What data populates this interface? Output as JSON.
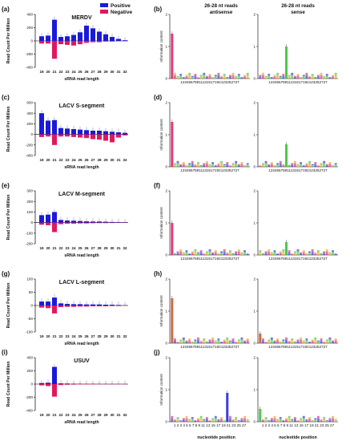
{
  "figure": {
    "panels_left": [
      "(a)",
      "(c)",
      "(e)",
      "(g)",
      "(i)"
    ],
    "panels_right": [
      "(b)",
      "(d)",
      "(f)",
      "(h)",
      "(j)"
    ],
    "header_line1": "26-28 nt reads",
    "header_antisense": "antisense",
    "header_sense": "sense",
    "logo_ylabel": "Information content",
    "logo_xlabel": "nucleotide position",
    "logo_xticks_compact": "12345678911131517192123252727",
    "logo_xticks_spaced": "1 2 3 4 5 6 7 8 9 11 13 15 17 19 21 23 25 27"
  },
  "legend": {
    "positive_label": "Positive",
    "negative_label": "Negative",
    "positive_color": "#1a1adb",
    "negative_color": "#e0185e"
  },
  "chart_data": [
    {
      "type": "bar",
      "title": "MERDV",
      "ylabel": "Read Count Per Million",
      "xlabel": "sRNA read length",
      "categories": [
        19,
        20,
        21,
        22,
        23,
        24,
        25,
        26,
        27,
        28,
        29,
        30,
        31,
        32
      ],
      "ylim": [
        -400,
        400
      ],
      "yticks": [
        -400,
        -200,
        0,
        200,
        400
      ],
      "series": [
        {
          "name": "Positive",
          "values": [
            70,
            80,
            320,
            60,
            70,
            90,
            130,
            230,
            190,
            140,
            100,
            60,
            30,
            10
          ]
        },
        {
          "name": "Negative",
          "values": [
            -40,
            -40,
            -270,
            -50,
            -60,
            -70,
            -50,
            -30,
            -20,
            -20,
            -10,
            -10,
            -5,
            -3
          ]
        }
      ]
    },
    {
      "type": "bar",
      "title": "LACV S-segment",
      "ylabel": "Read Count Per Million",
      "xlabel": "sRNA read length",
      "categories": [
        19,
        20,
        21,
        22,
        23,
        24,
        25,
        26,
        27,
        28,
        29,
        30,
        31,
        32
      ],
      "ylim": [
        -400,
        600
      ],
      "yticks": [
        -400,
        -200,
        0,
        200,
        400,
        600
      ],
      "series": [
        {
          "name": "Positive",
          "values": [
            400,
            260,
            270,
            120,
            110,
            100,
            90,
            80,
            70,
            70,
            60,
            50,
            40,
            30
          ]
        },
        {
          "name": "Negative",
          "values": [
            -50,
            -40,
            -200,
            -40,
            -40,
            -50,
            -60,
            -70,
            -90,
            -100,
            -120,
            -150,
            -60,
            -20
          ]
        }
      ]
    },
    {
      "type": "bar",
      "title": "LACV M-segment",
      "ylabel": "Read Count Per Million",
      "xlabel": "sRNA read length",
      "categories": [
        19,
        20,
        21,
        22,
        23,
        24,
        25,
        26,
        27,
        28,
        29,
        30,
        31,
        32
      ],
      "ylim": [
        -200,
        300
      ],
      "yticks": [
        -200,
        -100,
        0,
        100,
        200,
        300
      ],
      "series": [
        {
          "name": "Positive",
          "values": [
            70,
            75,
            100,
            25,
            20,
            18,
            15,
            12,
            10,
            10,
            8,
            6,
            5,
            3
          ]
        },
        {
          "name": "Negative",
          "values": [
            -20,
            -25,
            -90,
            -15,
            -10,
            -10,
            -8,
            -8,
            -6,
            -5,
            -5,
            -4,
            -3,
            -2
          ]
        }
      ]
    },
    {
      "type": "bar",
      "title": "LACV L-segment",
      "ylabel": "Read Count Per Million",
      "xlabel": "sRNA read length",
      "categories": [
        19,
        20,
        21,
        22,
        23,
        24,
        25,
        26,
        27,
        28,
        29,
        30,
        31,
        32
      ],
      "ylim": [
        -100,
        100
      ],
      "yticks": [
        -100,
        -50,
        0,
        50,
        100
      ],
      "series": [
        {
          "name": "Positive",
          "values": [
            15,
            15,
            30,
            8,
            6,
            5,
            5,
            4,
            4,
            4,
            3,
            3,
            2,
            1
          ]
        },
        {
          "name": "Negative",
          "values": [
            -8,
            -10,
            -30,
            -6,
            -5,
            -5,
            -4,
            -4,
            -3,
            -3,
            -3,
            -2,
            -2,
            -1
          ]
        }
      ]
    },
    {
      "type": "bar",
      "title": "USUV",
      "ylabel": "Read Count Per Million",
      "xlabel": "sRNA read length",
      "categories": [
        19,
        20,
        21,
        22,
        23,
        24,
        25,
        26,
        27,
        28,
        29,
        30,
        31,
        32
      ],
      "ylim": [
        -400,
        400
      ],
      "yticks": [
        -400,
        -200,
        0,
        200,
        400
      ],
      "series": [
        {
          "name": "Positive",
          "values": [
            15,
            20,
            260,
            10,
            8,
            6,
            5,
            4,
            4,
            3,
            3,
            2,
            2,
            1
          ]
        },
        {
          "name": "Negative",
          "values": [
            -20,
            -30,
            -190,
            -15,
            -10,
            -8,
            -6,
            -5,
            -5,
            -4,
            -4,
            -3,
            -2,
            -2
          ]
        }
      ]
    }
  ],
  "logo_data": [
    {
      "antisense": {
        "peak_pos": 1,
        "peak_ic": 1.4,
        "peak_color": "#e0185e",
        "ylim": [
          0,
          2
        ]
      },
      "sense": {
        "peak_pos": 10,
        "peak_ic": 1.0,
        "peak_color": "#2ec02e",
        "ylim": [
          0,
          2
        ]
      }
    },
    {
      "antisense": {
        "peak_pos": 1,
        "peak_ic": 1.4,
        "peak_color": "#e0185e",
        "ylim": [
          0,
          2
        ]
      },
      "sense": {
        "peak_pos": 10,
        "peak_ic": 0.7,
        "peak_color": "#2ec02e",
        "ylim": [
          0,
          2
        ]
      }
    },
    {
      "antisense": {
        "peak_pos": 1,
        "peak_ic": 1.0,
        "peak_color": "#e0185e",
        "ylim": [
          0,
          2
        ]
      },
      "sense": {
        "peak_pos": 10,
        "peak_ic": 0.4,
        "peak_color": "#2ec02e",
        "ylim": [
          0,
          2
        ]
      }
    },
    {
      "antisense": {
        "peak_pos": 1,
        "peak_ic": 1.4,
        "peak_color": "#c8501e",
        "ylim": [
          0,
          2
        ]
      },
      "sense": {
        "peak_pos": 1,
        "peak_ic": 0.3,
        "peak_color": "#c8501e",
        "ylim": [
          0,
          2
        ]
      }
    },
    {
      "antisense": {
        "peak_pos": 20,
        "peak_ic": 0.9,
        "peak_color": "#1a1adb",
        "ylim": [
          0,
          2
        ]
      },
      "sense": {
        "peak_pos": 1,
        "peak_ic": 0.4,
        "peak_color": "#2ec02e",
        "ylim": [
          0,
          2
        ]
      }
    }
  ]
}
